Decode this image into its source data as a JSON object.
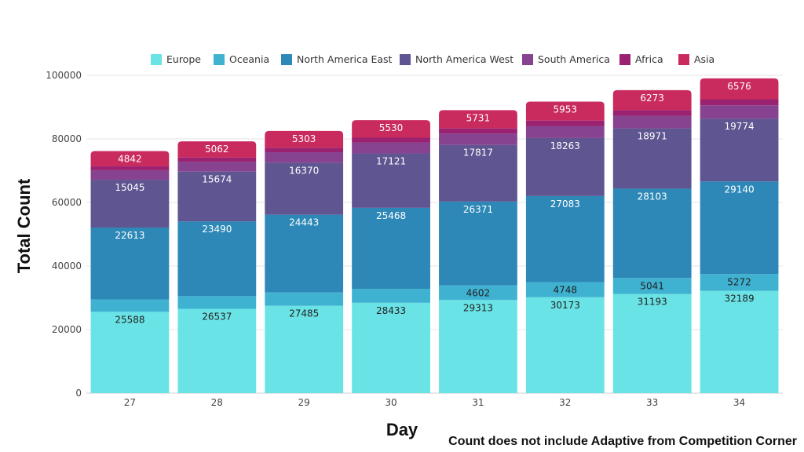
{
  "chart_data": {
    "type": "bar",
    "stacked": true,
    "categories": [
      "27",
      "28",
      "29",
      "30",
      "31",
      "32",
      "33",
      "34"
    ],
    "series": [
      {
        "name": "Europe",
        "color": "#6ae3e6",
        "values": [
          25588,
          26537,
          27485,
          28433,
          29313,
          30173,
          31193,
          32189
        ],
        "labeled": [
          true,
          true,
          true,
          true,
          true,
          true,
          true,
          true
        ]
      },
      {
        "name": "Oceania",
        "color": "#3fb2d2",
        "values": [
          3900,
          4000,
          4200,
          4400,
          4602,
          4748,
          5041,
          5272
        ],
        "labeled": [
          false,
          false,
          false,
          false,
          true,
          true,
          true,
          true
        ]
      },
      {
        "name": "North America East",
        "color": "#2d88b7",
        "values": [
          22613,
          23490,
          24443,
          25468,
          26371,
          27083,
          28103,
          29140
        ],
        "labeled": [
          true,
          true,
          true,
          true,
          true,
          true,
          true,
          true
        ]
      },
      {
        "name": "North America West",
        "color": "#5f5591",
        "values": [
          15045,
          15674,
          16370,
          17121,
          17817,
          18263,
          18971,
          19774
        ],
        "labeled": [
          true,
          true,
          true,
          true,
          true,
          true,
          true,
          true
        ]
      },
      {
        "name": "South America",
        "color": "#87438f",
        "values": [
          3000,
          3150,
          3300,
          3450,
          3600,
          3800,
          3950,
          4200
        ],
        "labeled": [
          false,
          false,
          false,
          false,
          false,
          false,
          false,
          false
        ]
      },
      {
        "name": "Africa",
        "color": "#9b2270",
        "values": [
          1200,
          1300,
          1400,
          1500,
          1600,
          1700,
          1800,
          1900
        ],
        "labeled": [
          false,
          false,
          false,
          false,
          false,
          false,
          false,
          false
        ]
      },
      {
        "name": "Asia",
        "color": "#c92b5e",
        "values": [
          4842,
          5062,
          5303,
          5530,
          5731,
          5953,
          6273,
          6576
        ],
        "labeled": [
          true,
          true,
          true,
          true,
          true,
          true,
          true,
          true
        ]
      }
    ],
    "label_colors": {
      "Europe": "#222222",
      "Oceania": "#222222",
      "North America East": "#ffffff",
      "North America West": "#ffffff",
      "Asia": "#ffffff"
    },
    "xlabel": "Day",
    "ylabel": "Total Count",
    "ylim": [
      0,
      100000
    ],
    "yticks": [
      0,
      20000,
      40000,
      60000,
      80000,
      100000
    ],
    "grid": true,
    "legend_position": "top"
  },
  "footnote": "Count does not include Adaptive from Competition Corner"
}
